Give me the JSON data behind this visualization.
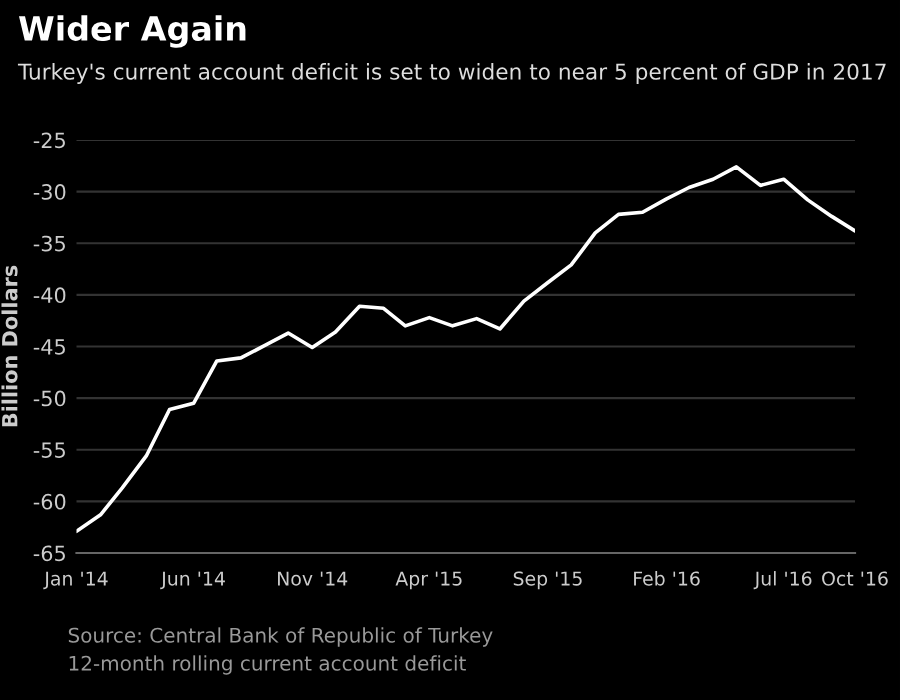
{
  "chart_data": {
    "type": "line",
    "title": "Wider Again",
    "subtitle": "Turkey's current account deficit is set to widen to near 5 percent of GDP in 2017",
    "ylabel": "Billion Dollars",
    "annotations": [
      "Source: Central Bank of Republic of Turkey",
      "12-month rolling current account deficit"
    ],
    "x": [
      "2014-01",
      "2014-02",
      "2014-03",
      "2014-04",
      "2014-05",
      "2014-06",
      "2014-07",
      "2014-08",
      "2014-09",
      "2014-10",
      "2014-11",
      "2014-12",
      "2015-01",
      "2015-02",
      "2015-03",
      "2015-04",
      "2015-05",
      "2015-06",
      "2015-07",
      "2015-08",
      "2015-09",
      "2015-10",
      "2015-11",
      "2015-12",
      "2016-01",
      "2016-02",
      "2016-03",
      "2016-04",
      "2016-05",
      "2016-06",
      "2016-07",
      "2016-08",
      "2016-09",
      "2016-10"
    ],
    "series": [
      {
        "color": "#ffffff",
        "values": [
          -62.9,
          -61.3,
          -58.7,
          -55.6,
          -51.1,
          -50.5,
          -46.4,
          -46.1,
          -44.9,
          -43.7,
          -45.1,
          -43.6,
          -41.1,
          -41.3,
          -43.0,
          -42.2,
          -43.0,
          -42.3,
          -43.3,
          -40.6,
          -38.8,
          -37.1,
          -34.0,
          -32.2,
          -32.0,
          -30.7,
          -29.6,
          -28.8,
          -27.6,
          -29.4,
          -28.8,
          -30.8,
          -32.4,
          -33.8
        ]
      }
    ],
    "xlim": [
      "2014-01",
      "2016-10"
    ],
    "xticks": [
      {
        "value": "2014-01",
        "label": "Jan '14"
      },
      {
        "value": "2014-06",
        "label": "Jun '14"
      },
      {
        "value": "2014-11",
        "label": "Nov '14"
      },
      {
        "value": "2015-04",
        "label": "Apr '15"
      },
      {
        "value": "2015-09",
        "label": "Sep '15"
      },
      {
        "value": "2016-02",
        "label": "Feb '16"
      },
      {
        "value": "2016-07",
        "label": "Jul '16"
      },
      {
        "value": "2016-10",
        "label": "Oct '16"
      }
    ],
    "ylim": [
      -65,
      -25
    ],
    "yticks": [
      -65,
      -60,
      -55,
      -50,
      -45,
      -40,
      -35,
      -30,
      -25
    ],
    "grid": "y",
    "marker": "none",
    "line_style": "solid"
  }
}
